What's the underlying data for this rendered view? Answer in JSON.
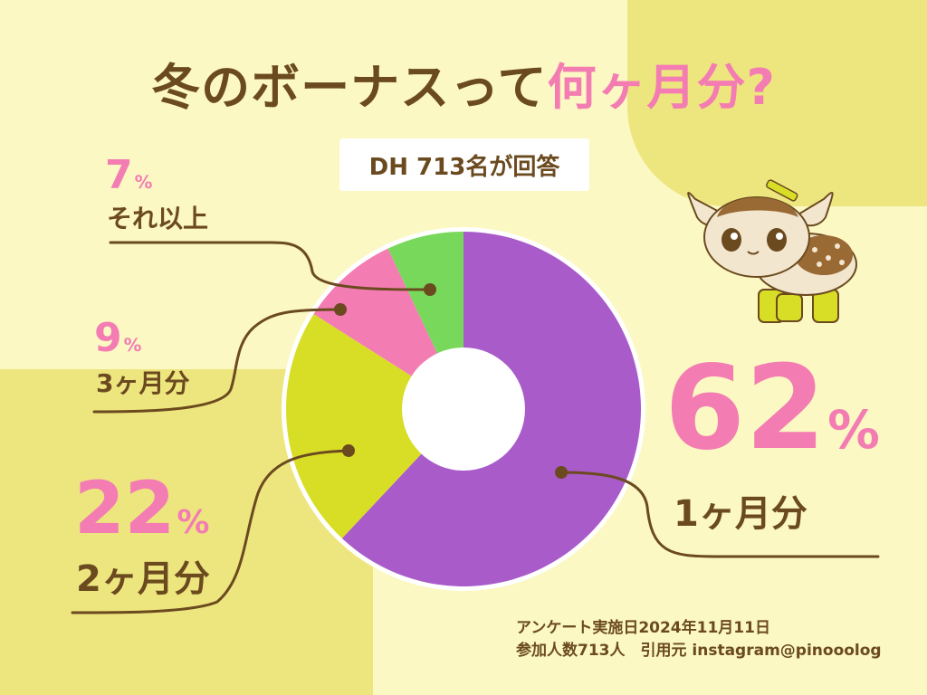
{
  "title_main": "冬のボーナスって",
  "title_accent": "何ヶ月分?",
  "badge": "DH 713名が回答",
  "labels": [
    {
      "pct": "7",
      "unit": "%",
      "text": "それ以上"
    },
    {
      "pct": "9",
      "unit": "%",
      "text": "3ヶ月分"
    },
    {
      "pct": "22",
      "unit": "%",
      "text": "2ヶ月分"
    },
    {
      "pct": "62",
      "unit": "%",
      "text": "1ヶ月分"
    }
  ],
  "footer": {
    "line1": "アンケート実施日2024年11月11日",
    "line2": "参加人数713人　引用元 instagram@pinooolog"
  },
  "colors": {
    "one_month": "#a95bca",
    "two_month": "#d8dd25",
    "three_month": "#f37db3",
    "more": "#78d85b",
    "accent": "#f37db3",
    "text": "#6b4a1f",
    "background": "#fbf8c3",
    "block": "#ede67f"
  },
  "chart_data": {
    "type": "pie",
    "categories": [
      "1ヶ月分",
      "2ヶ月分",
      "3ヶ月分",
      "それ以上"
    ],
    "values": [
      62,
      22,
      9,
      7
    ],
    "unit": "%",
    "donut": true,
    "title": "冬のボーナスって何ヶ月分?"
  }
}
